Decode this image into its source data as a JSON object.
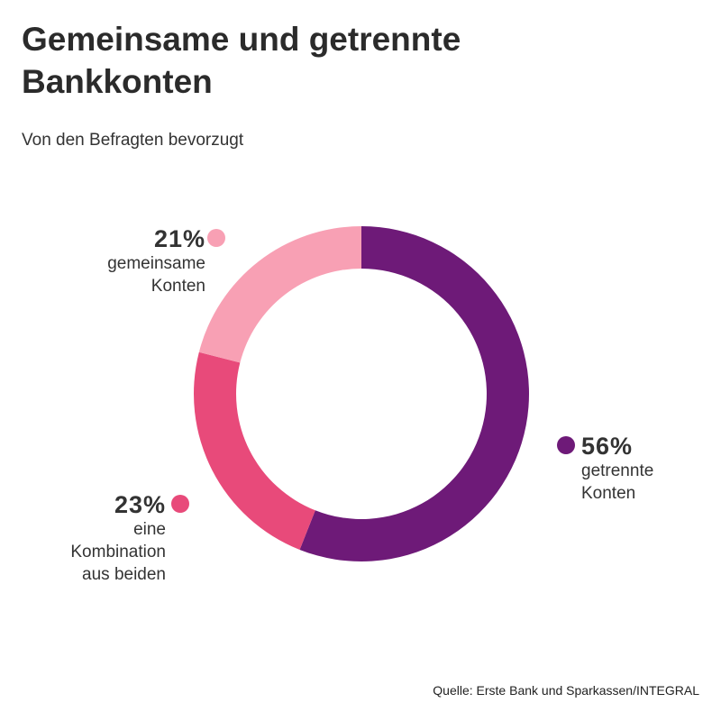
{
  "chart_data": {
    "type": "pie",
    "donut": true,
    "title": "Gemeinsame und getrennte Bankkonten",
    "subtitle": "Von den Befragten bevorzugt",
    "slices": [
      {
        "label": "getrennte Konten",
        "value": 56,
        "value_label": "56%",
        "color": "#6e1a78"
      },
      {
        "label": "eine Kombination aus beiden",
        "value": 23,
        "value_label": "23%",
        "color": "#e84a7a"
      },
      {
        "label": "gemeinsame Konten",
        "value": 21,
        "value_label": "21%",
        "color": "#f8a0b4"
      }
    ],
    "source": "Quelle: Erste Bank und Sparkassen/INTEGRAL"
  }
}
